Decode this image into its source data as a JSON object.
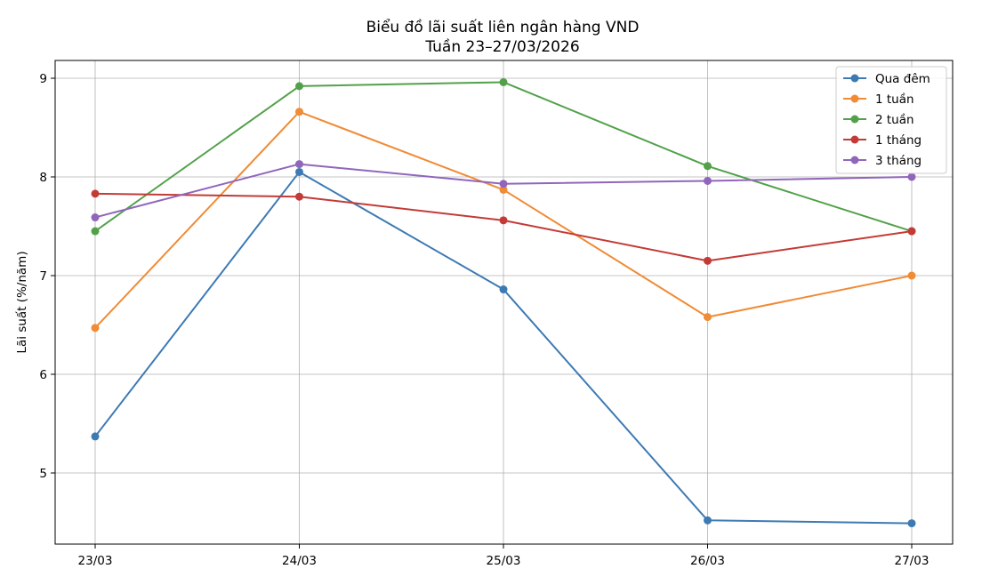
{
  "chart_data": {
    "type": "line",
    "title": "Biểu đồ lãi suất liên ngân hàng VND",
    "subtitle": "Tuần 23–27/03/2026",
    "xlabel": "",
    "ylabel": "Lãi suất (%/năm)",
    "categories": [
      "23/03",
      "24/03",
      "25/03",
      "26/03",
      "27/03"
    ],
    "ylim": [
      4.33,
      9.2
    ],
    "yticks": [
      5,
      6,
      7,
      8,
      9
    ],
    "ytick_labels": [
      "5",
      "6",
      "7",
      "8",
      "9"
    ],
    "grid": true,
    "legend_position": "top-right",
    "series": [
      {
        "name": "Qua đêm",
        "color": "#3d7ab3",
        "values": [
          5.37,
          8.05,
          6.86,
          4.52,
          4.49
        ]
      },
      {
        "name": "1 tuần",
        "color": "#f08b36",
        "values": [
          6.47,
          8.66,
          7.87,
          6.58,
          7.0
        ]
      },
      {
        "name": "2 tuần",
        "color": "#52a14a",
        "values": [
          7.45,
          8.92,
          8.96,
          8.11,
          7.45
        ]
      },
      {
        "name": "1 tháng",
        "color": "#c33b37",
        "values": [
          7.83,
          7.8,
          7.56,
          7.15,
          7.45
        ]
      },
      {
        "name": "3 tháng",
        "color": "#9066bb",
        "values": [
          7.59,
          8.13,
          7.93,
          7.96,
          8.0
        ]
      }
    ]
  }
}
